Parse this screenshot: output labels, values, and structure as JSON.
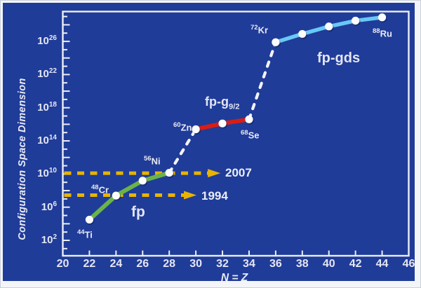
{
  "chart_data": {
    "type": "line",
    "title": "",
    "xlabel": "N = Z",
    "ylabel": "Configuration Space Dimension",
    "x_axis": {
      "ticks": [
        20,
        22,
        24,
        26,
        28,
        30,
        32,
        34,
        36,
        38,
        40,
        42,
        44,
        46
      ],
      "xlim": [
        20,
        46
      ]
    },
    "y_axis": {
      "scale": "log10",
      "base": "10",
      "labeled_exponents": [
        2,
        6,
        10,
        14,
        18,
        22,
        26
      ],
      "ylim_exponents": [
        0.1,
        29.6
      ]
    },
    "series": [
      {
        "name": "fp",
        "color": "#6ab34a",
        "style": "solid",
        "points": [
          {
            "x": 22,
            "log10_dim": 4.5,
            "mass": "44",
            "symbol": "Ti",
            "nuclide": "44Ti"
          },
          {
            "x": 24,
            "log10_dim": 7.4,
            "mass": "48",
            "symbol": "Cr",
            "nuclide": "48Cr"
          },
          {
            "x": 26,
            "log10_dim": 9.2
          },
          {
            "x": 28,
            "log10_dim": 10.15,
            "mass": "56",
            "symbol": "Ni",
            "nuclide": "56Ni"
          }
        ]
      },
      {
        "name": "fp-g9/2",
        "color": "#d91d15",
        "style": "solid",
        "points": [
          {
            "x": 30,
            "log10_dim": 15.4,
            "mass": "60",
            "symbol": "Zn",
            "nuclide": "60Zn"
          },
          {
            "x": 32,
            "log10_dim": 16.1
          },
          {
            "x": 34,
            "log10_dim": 16.6,
            "mass": "68",
            "symbol": "Se",
            "nuclide": "68Se"
          }
        ]
      },
      {
        "name": "fp-gds",
        "color": "#69c8f5",
        "style": "solid",
        "points": [
          {
            "x": 36,
            "log10_dim": 25.9,
            "mass": "72",
            "symbol": "Kr",
            "nuclide": "72Kr"
          },
          {
            "x": 38,
            "log10_dim": 26.9
          },
          {
            "x": 40,
            "log10_dim": 27.8
          },
          {
            "x": 42,
            "log10_dim": 28.5
          },
          {
            "x": 44,
            "log10_dim": 28.9,
            "mass": "88",
            "symbol": "Ru",
            "nuclide": "88Ru"
          }
        ]
      }
    ],
    "transitions": [
      {
        "from": "56Ni",
        "to": "60Zn",
        "style": "dashed",
        "color": "#f3f3f8"
      },
      {
        "from": "68Se",
        "to": "72Kr",
        "style": "dashed",
        "color": "#f3f3f8"
      }
    ],
    "reference_lines": [
      {
        "label": "2007",
        "log10_dim": 10.1,
        "arrow_end_x": 31.85,
        "color": "#e8b400",
        "style": "dashed-arrow"
      },
      {
        "label": "1994",
        "log10_dim": 7.45,
        "arrow_end_x": 30.05,
        "color": "#e8b400",
        "style": "dashed-arrow"
      }
    ],
    "regions": [
      {
        "name": "fp",
        "base": "fp",
        "sub": ""
      },
      {
        "name": "fp-g9/2",
        "base": "fp-g",
        "sub": "9/2"
      },
      {
        "name": "fp-gds",
        "base": "fp-gds",
        "sub": ""
      }
    ],
    "legend": "none",
    "grid": "off"
  },
  "colors": {
    "background": "#1f3c99",
    "frame": "#f3f5f9",
    "axis": "#eceef6",
    "text": "#e9eaf4",
    "point_fill": "#fdfdff",
    "point_shadow": "rgba(15,25,70,0.45)"
  }
}
